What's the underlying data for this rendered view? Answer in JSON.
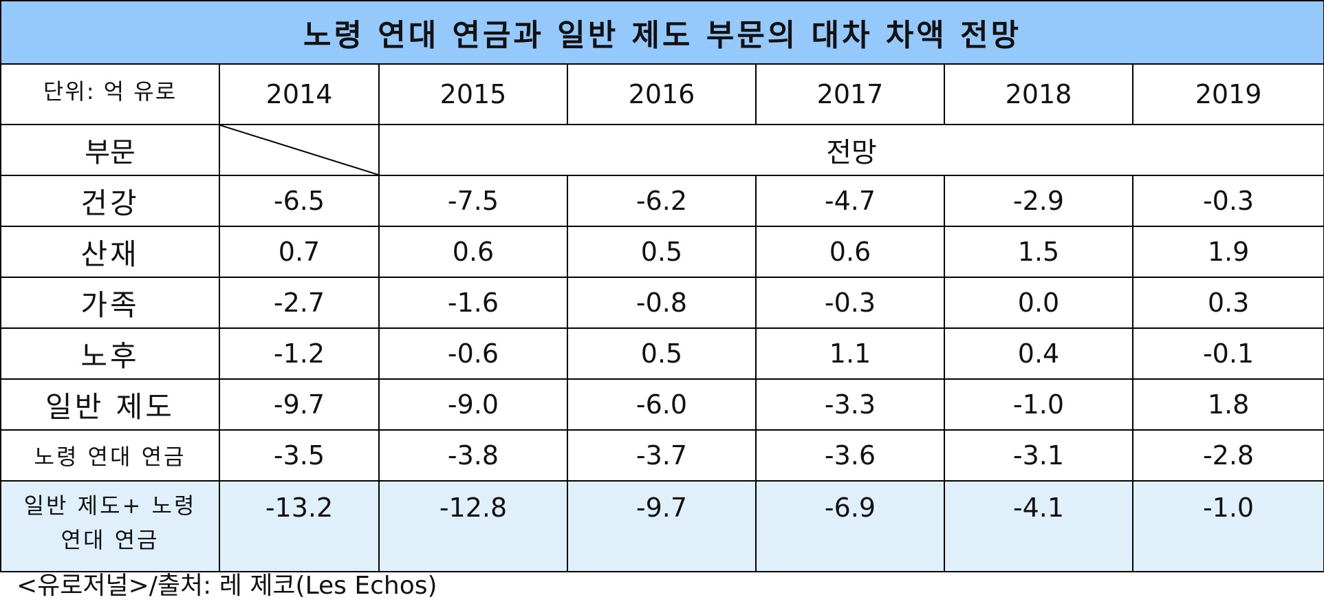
{
  "title": "노령 연대 연금과 일반 제도 부문의 대차 차액 전망",
  "unit_label": "단위: 억 유로",
  "years": [
    "2014",
    "2015",
    "2016",
    "2017",
    "2018",
    "2019"
  ],
  "sector_header": "부문",
  "forecast_header": "전망",
  "rows": [
    {
      "label": "건강",
      "values": [
        "-6.5",
        "-7.5",
        "-6.2",
        "-4.7",
        "-2.9",
        "-0.3"
      ]
    },
    {
      "label": "산재",
      "values": [
        "0.7",
        "0.6",
        "0.5",
        "0.6",
        "1.5",
        "1.9"
      ]
    },
    {
      "label": "가족",
      "values": [
        "-2.7",
        "-1.6",
        "-0.8",
        "-0.3",
        "0.0",
        "0.3"
      ]
    },
    {
      "label": "노후",
      "values": [
        "-1.2",
        "-0.6",
        "0.5",
        "1.1",
        "0.4",
        "-0.1"
      ]
    },
    {
      "label": "일반 제도",
      "values": [
        "-9.7",
        "-9.0",
        "-6.0",
        "-3.3",
        "-1.0",
        "1.8"
      ]
    },
    {
      "label": "노령 연대 연금",
      "values": [
        "-3.5",
        "-3.8",
        "-3.7",
        "-3.6",
        "-3.1",
        "-2.8"
      ]
    }
  ],
  "total": {
    "label_line1": "일반 제도+ 노령",
    "label_line2": "연대 연금",
    "values": [
      "-13.2",
      "-12.8",
      "-9.7",
      "-6.9",
      "-4.1",
      "-1.0"
    ]
  },
  "source": "<유로저널>/출처: 레 제코(Les Echos)",
  "colors": {
    "title_bg": "#95c8fb",
    "total_bg": "#dff0fa",
    "border": "#000000"
  }
}
